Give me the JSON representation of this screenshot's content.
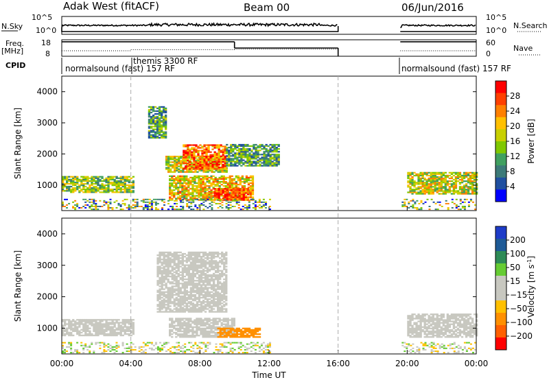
{
  "header": {
    "station": "Adak West (fitACF)",
    "beam": "Beam 00",
    "date": "06/Jun/2016"
  },
  "top_panels": {
    "nsky_label": "N.Sky",
    "nsky_ticks": [
      "10^5",
      "10^0"
    ],
    "nsearch_label": "N.Search",
    "nsearch_ticks": [
      "10^5",
      "10^0"
    ],
    "freq_label": "Freq.",
    "freq_unit": "[MHz]",
    "freq_ticks": [
      "18",
      "8"
    ],
    "nave_label": "Nave",
    "nave_ticks": [
      "60",
      "0"
    ],
    "cpid_label": "CPID",
    "cpid_segments": [
      {
        "text": "normalsound (fast) 157 RF",
        "start_h": 0
      },
      {
        "text": "themis 3300 RF",
        "start_h": 4
      },
      {
        "text": "normalsound (fast) 157 RF",
        "start_h": 19.75
      }
    ]
  },
  "colorbars": {
    "power": {
      "label": "Power [dB]",
      "ticks": [
        "28",
        "24",
        "20",
        "16",
        "12",
        "8",
        "4"
      ],
      "colors": [
        "#ff0000",
        "#ff4000",
        "#ff8000",
        "#ffc000",
        "#c8d000",
        "#80c800",
        "#40a060",
        "#3c7a78",
        "#2050a0",
        "#0000ff"
      ]
    },
    "velocity": {
      "label_main": "Velocity [m s",
      "label_exp": "-1",
      "label_close": "]",
      "ticks": [
        "200",
        "100",
        "50",
        "15",
        "−15",
        "−50",
        "−100",
        "−200"
      ],
      "colors": [
        "#1e3cc8",
        "#1e5a96",
        "#2e8b57",
        "#66cc33",
        "#c8c8c0",
        "#c8c8c0",
        "#ffc000",
        "#ff9000",
        "#ff6000",
        "#ff0000"
      ]
    }
  },
  "chart_data": [
    {
      "type": "heatmap",
      "panel": "power",
      "ylabel": "Slant Range [km]",
      "xlabel": "",
      "ylim": [
        180,
        4500
      ],
      "xlim_hours": [
        0,
        24
      ],
      "y_ticks": [
        1000,
        2000,
        3000,
        4000
      ],
      "clim": [
        0,
        30
      ],
      "data_gaps_hours": [
        [
          16,
          19.6
        ]
      ],
      "regions": [
        {
          "t0": 0,
          "t1": 4.1,
          "r0": 750,
          "r1": 1250,
          "value": 14
        },
        {
          "t0": 5.0,
          "t1": 6.0,
          "r0": 2500,
          "r1": 3500,
          "value": 10
        },
        {
          "t0": 6.2,
          "t1": 11.0,
          "r0": 500,
          "r1": 1300,
          "value": 18
        },
        {
          "t0": 6.0,
          "t1": 9.5,
          "r0": 1400,
          "r1": 1900,
          "value": 16
        },
        {
          "t0": 7.0,
          "t1": 9.5,
          "r0": 1500,
          "r1": 2300,
          "value": 24
        },
        {
          "t0": 8.8,
          "t1": 10.8,
          "r0": 500,
          "r1": 900,
          "value": 26
        },
        {
          "t0": 9.5,
          "t1": 12.5,
          "r0": 1600,
          "r1": 2300,
          "value": 10
        },
        {
          "t0": 20.0,
          "t1": 24,
          "r0": 700,
          "r1": 1400,
          "value": 16
        }
      ]
    },
    {
      "type": "heatmap",
      "panel": "velocity",
      "ylabel": "Slant Range [km]",
      "xlabel": "Time UT",
      "ylim": [
        180,
        4500
      ],
      "xlim_hours": [
        0,
        24
      ],
      "y_ticks": [
        1000,
        2000,
        3000,
        4000
      ],
      "clim": [
        -200,
        200
      ],
      "data_gaps_hours": [
        [
          16,
          19.6
        ]
      ],
      "x_ticks": [
        "00:00",
        "04:00",
        "08:00",
        "12:00",
        "16:00",
        "20:00",
        "00:00"
      ],
      "regions": [
        {
          "t0": 0,
          "t1": 4.1,
          "r0": 750,
          "r1": 1250,
          "value": 0
        },
        {
          "t0": 5.5,
          "t1": 9.5,
          "r0": 1500,
          "r1": 3400,
          "value": 0
        },
        {
          "t0": 6.2,
          "t1": 10.0,
          "r0": 700,
          "r1": 1300,
          "value": 0
        },
        {
          "t0": 9.0,
          "t1": 11.5,
          "r0": 700,
          "r1": 1000,
          "value": -60
        },
        {
          "t0": 20.0,
          "t1": 24,
          "r0": 700,
          "r1": 1450,
          "value": 0
        }
      ]
    }
  ]
}
